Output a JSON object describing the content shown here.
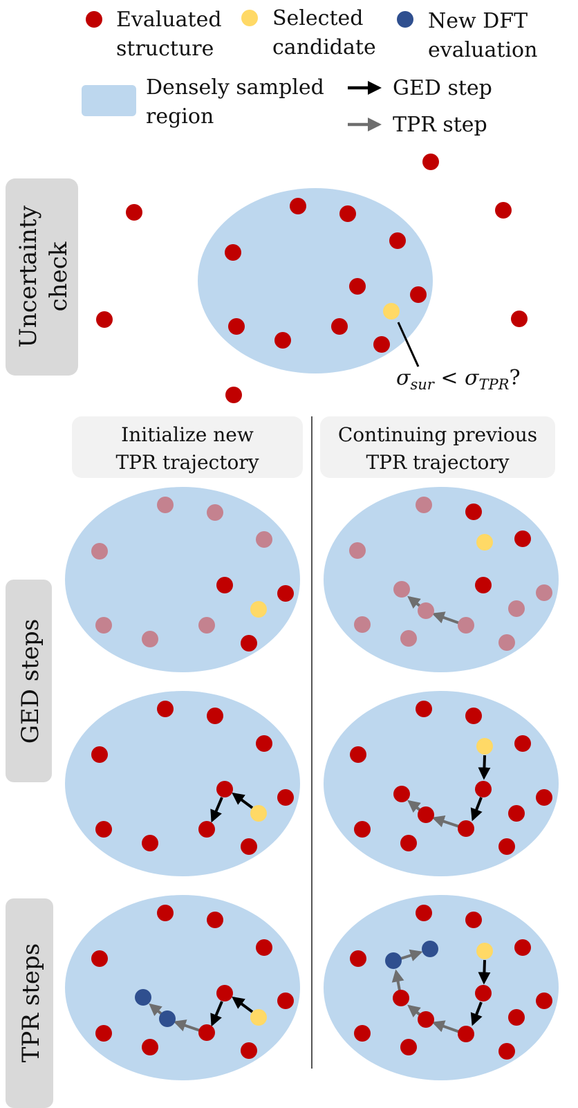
{
  "colors": {
    "evaluated": "#c00000",
    "selected": "#ffd966",
    "new_dft": "#2f4f8f",
    "faded": "#c4828f",
    "region": "#bdd7ee",
    "ged_arrow": "#000000",
    "tpr_arrow": "#6e6e6e",
    "side_label_bg": "#d9d9d9",
    "col_header_bg": "#f2f2f2",
    "divider": "#555555"
  },
  "legend": {
    "evaluated": [
      "Evaluated",
      "structure"
    ],
    "selected": [
      "Selected",
      "candidate"
    ],
    "new_dft": [
      "New DFT",
      "evaluation"
    ],
    "region": [
      "Densely sampled",
      "region"
    ],
    "ged_step": "GED step",
    "tpr_step": "TPR step"
  },
  "side_labels": {
    "uncertainty": [
      "Uncertainty",
      "check"
    ],
    "ged": "GED steps",
    "tpr": "TPR steps"
  },
  "columns": {
    "left": [
      "Initialize new",
      "TPR trajectory"
    ],
    "right": [
      "Continuing previous",
      "TPR trajectory"
    ]
  },
  "condition": {
    "sigma": "σ",
    "sur": "sur",
    "lt": " < ",
    "tpr": "TPR",
    "q": "?"
  }
}
